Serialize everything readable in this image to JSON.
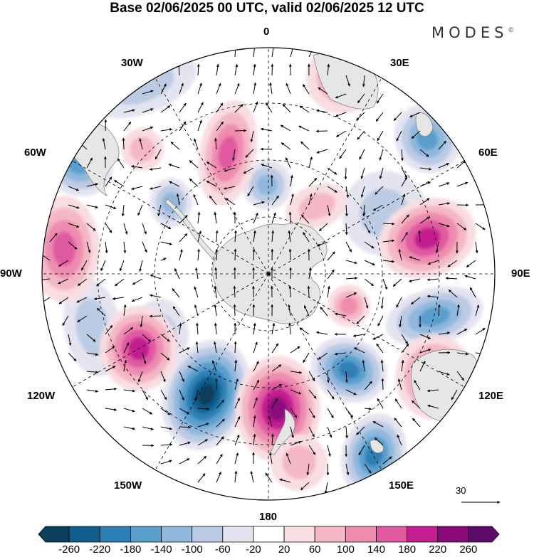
{
  "header": {
    "title": "Base 02/06/2025 00 UTC, valid 02/06/2025 12 UTC",
    "brand": "MODES",
    "brand_mark": "©"
  },
  "map": {
    "projection": "south polar stereographic",
    "longitude_labels": {
      "lon_0": "0",
      "lon_30e": "30E",
      "lon_60e": "60E",
      "lon_90e": "90E",
      "lon_120e": "120E",
      "lon_150e": "150E",
      "lon_180": "180",
      "lon_150w": "150W",
      "lon_120w": "120W",
      "lon_90w": "90W",
      "lon_60w": "60W",
      "lon_30w": "30W"
    },
    "reference_vector": "30"
  },
  "colorbar": {
    "ticks": [
      "-260",
      "-220",
      "-180",
      "-140",
      "-100",
      "-60",
      "-20",
      "20",
      "60",
      "100",
      "140",
      "180",
      "220",
      "260"
    ],
    "colors": [
      "#0b3d5c",
      "#0f5e8e",
      "#2d7fb4",
      "#5a9fcc",
      "#8fb8dc",
      "#bccbe4",
      "#e4e4f0",
      "#ffffff",
      "#f8dde2",
      "#f4b7c6",
      "#ee8cb0",
      "#e05aa0",
      "#c21e8f",
      "#8a0a7c",
      "#5c0a6b"
    ]
  },
  "colors": {
    "land": "#e6e6e6",
    "coast": "#888888"
  }
}
